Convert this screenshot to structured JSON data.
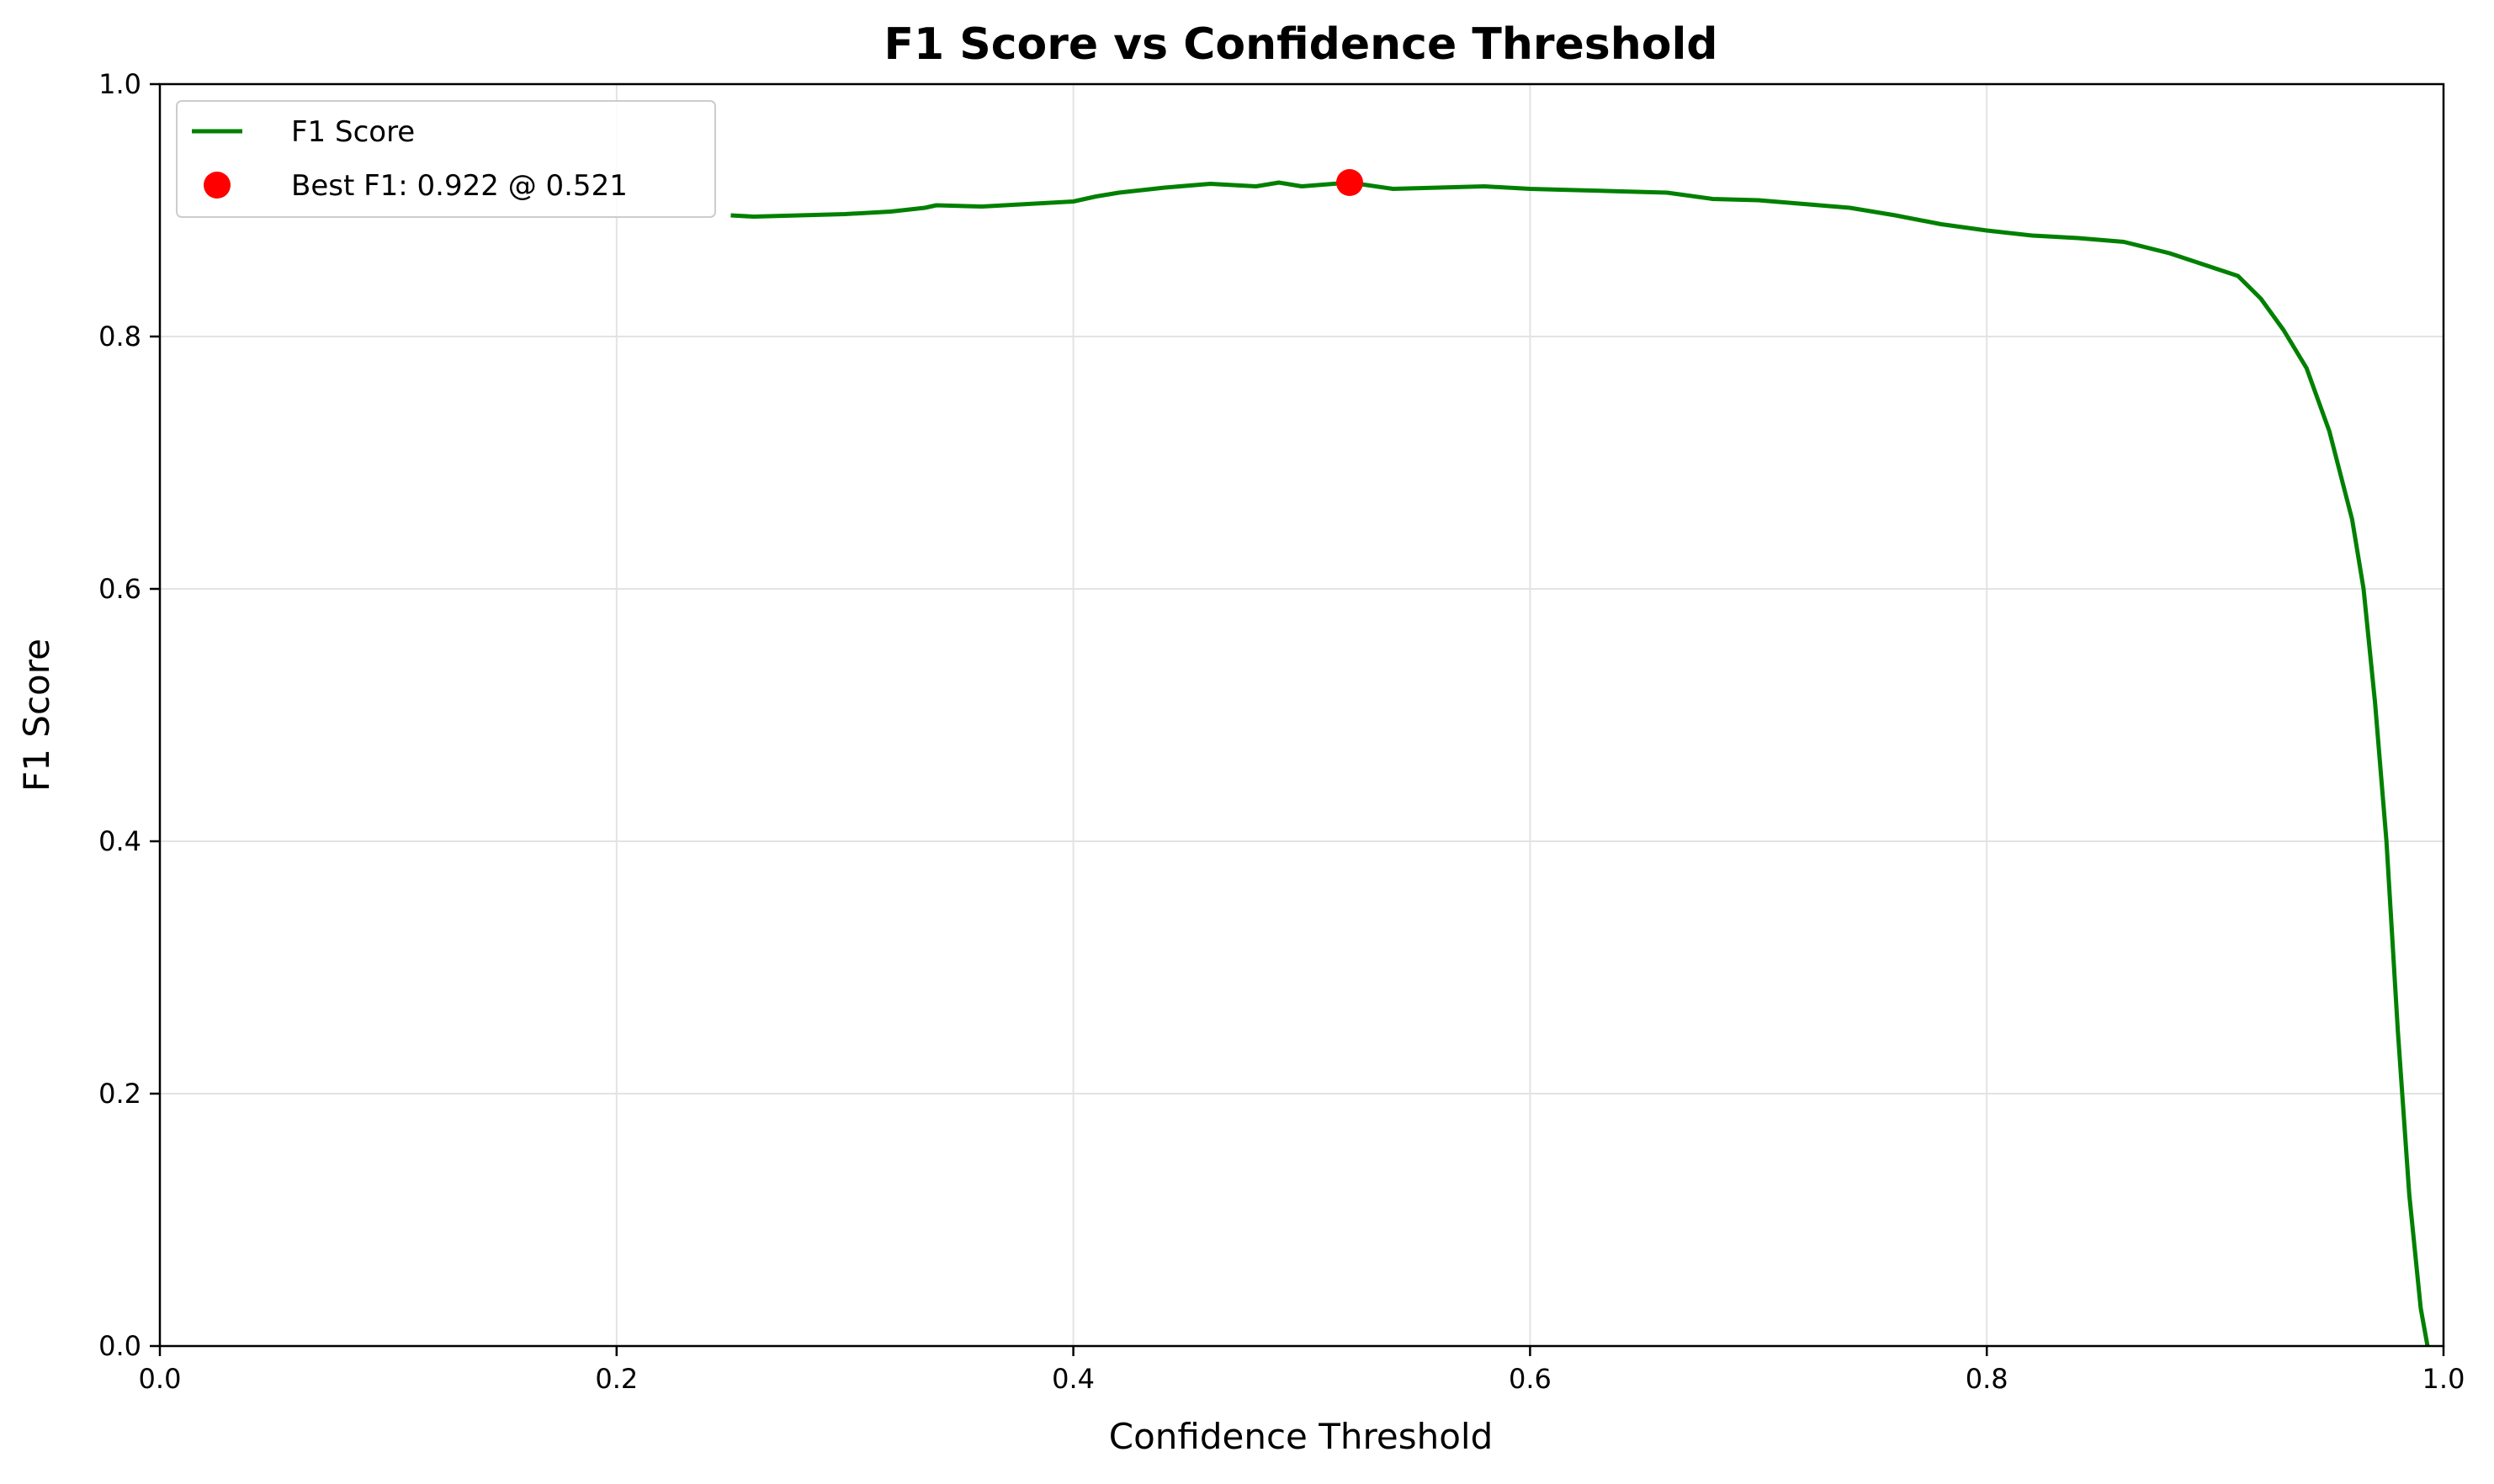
{
  "chart_data": {
    "type": "line",
    "title": "F1 Score vs Confidence Threshold",
    "xlabel": "Confidence Threshold",
    "ylabel": "F1 Score",
    "xlim": [
      0.0,
      1.0
    ],
    "ylim": [
      0.0,
      1.0
    ],
    "xticks": [
      "0.0",
      "0.2",
      "0.4",
      "0.6",
      "0.8",
      "1.0"
    ],
    "yticks": [
      "0.0",
      "0.2",
      "0.4",
      "0.6",
      "0.8",
      "1.0"
    ],
    "grid": true,
    "legend_position": "top-left",
    "series": [
      {
        "name": "F1 Score",
        "color": "#008000",
        "x": [
          0.25,
          0.26,
          0.3,
          0.32,
          0.335,
          0.34,
          0.36,
          0.38,
          0.4,
          0.41,
          0.42,
          0.44,
          0.46,
          0.48,
          0.49,
          0.5,
          0.521,
          0.54,
          0.56,
          0.58,
          0.6,
          0.62,
          0.64,
          0.66,
          0.68,
          0.7,
          0.72,
          0.74,
          0.76,
          0.78,
          0.8,
          0.82,
          0.84,
          0.86,
          0.88,
          0.9,
          0.91,
          0.92,
          0.93,
          0.94,
          0.95,
          0.96,
          0.965,
          0.97,
          0.975,
          0.98,
          0.985,
          0.99,
          0.993
        ],
        "y": [
          0.896,
          0.895,
          0.897,
          0.899,
          0.902,
          0.904,
          0.903,
          0.905,
          0.907,
          0.911,
          0.914,
          0.918,
          0.921,
          0.919,
          0.922,
          0.919,
          0.922,
          0.917,
          0.918,
          0.919,
          0.917,
          0.916,
          0.915,
          0.914,
          0.909,
          0.908,
          0.905,
          0.902,
          0.896,
          0.889,
          0.884,
          0.88,
          0.878,
          0.875,
          0.866,
          0.854,
          0.848,
          0.83,
          0.805,
          0.775,
          0.725,
          0.655,
          0.6,
          0.51,
          0.4,
          0.25,
          0.12,
          0.03,
          0.0
        ]
      }
    ],
    "best_point": {
      "label": "Best F1: 0.922 @ 0.521",
      "x": 0.521,
      "y": 0.922,
      "color": "#ff0000"
    }
  }
}
